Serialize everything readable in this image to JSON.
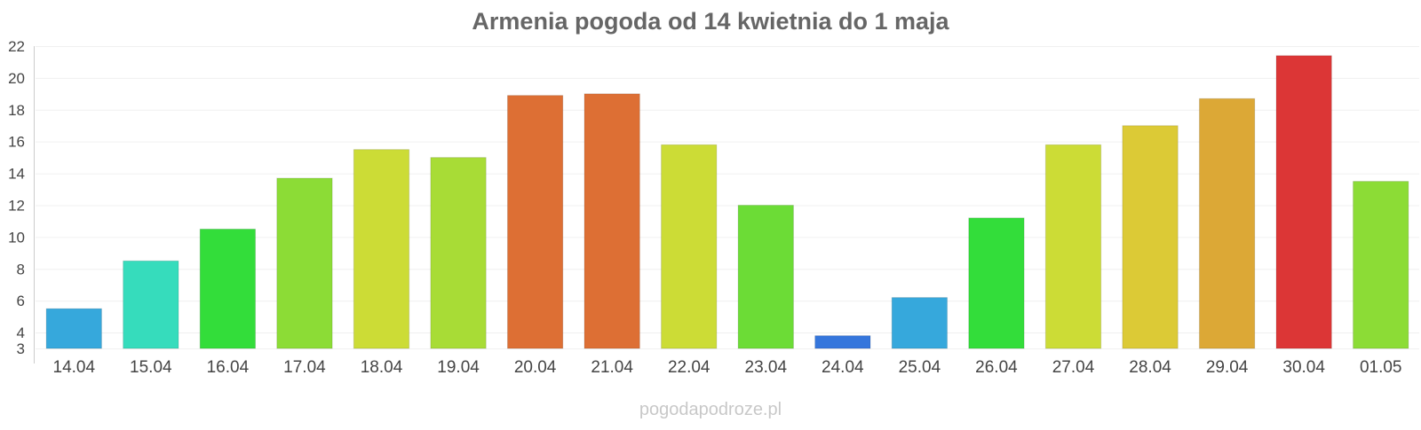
{
  "chart_data": {
    "type": "bar",
    "title": "Armenia pogoda od 14 kwietnia do 1 maja",
    "categories": [
      "14.04",
      "15.04",
      "16.04",
      "17.04",
      "18.04",
      "19.04",
      "20.04",
      "21.04",
      "22.04",
      "23.04",
      "24.04",
      "25.04",
      "26.04",
      "27.04",
      "28.04",
      "29.04",
      "30.04",
      "01.05"
    ],
    "values": [
      5.5,
      8.5,
      10.5,
      13.7,
      15.5,
      15.0,
      18.9,
      19.0,
      15.8,
      12.0,
      3.8,
      6.2,
      11.2,
      15.8,
      17.0,
      18.7,
      21.4,
      13.5
    ],
    "colors": [
      "#36a8dc",
      "#36dcbc",
      "#33dd3a",
      "#8cdc36",
      "#ccdc36",
      "#a8dc36",
      "#dd6f34",
      "#dd6f34",
      "#ccdc36",
      "#6cdc36",
      "#3576dc",
      "#36a8dc",
      "#33dd3a",
      "#ccdc36",
      "#dcca36",
      "#dca836",
      "#dc3636",
      "#8cdc36"
    ],
    "xlabel": "",
    "ylabel": "",
    "ylim": [
      3,
      22
    ],
    "yticks": [
      3,
      4,
      6,
      8,
      10,
      12,
      14,
      16,
      18,
      20,
      22
    ],
    "grid": true,
    "legend": "none"
  },
  "watermark": "pogodapodroze.pl"
}
